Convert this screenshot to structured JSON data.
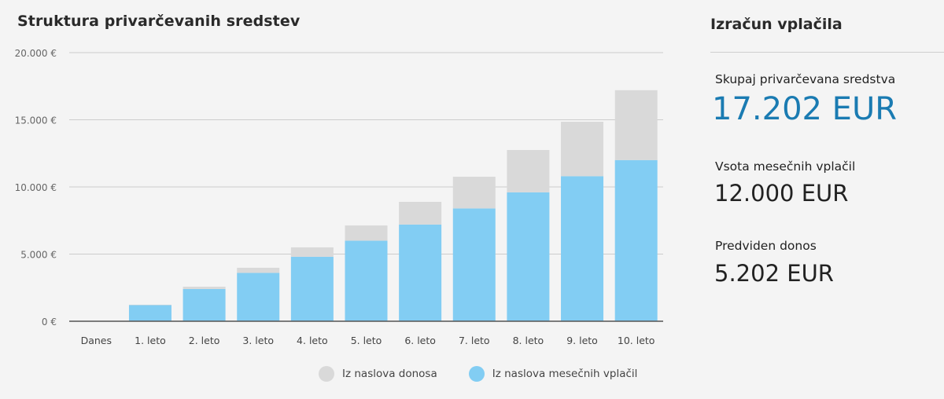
{
  "chart_data": {
    "type": "bar",
    "stacked": true,
    "title": "Struktura privarčevanih sredstev",
    "xlabel": "",
    "ylabel": "",
    "ylim": [
      0,
      20000
    ],
    "yticks": [
      0,
      5000,
      10000,
      15000,
      20000
    ],
    "ytick_labels": [
      "0 €",
      "5.000 €",
      "10.000 €",
      "15.000 €",
      "20.000 €"
    ],
    "grid": true,
    "legend_position": "bottom",
    "categories": [
      "Danes",
      "1. leto",
      "2. leto",
      "3. leto",
      "4. leto",
      "5. leto",
      "6. leto",
      "7. leto",
      "8. leto",
      "9. leto",
      "10. leto"
    ],
    "series": [
      {
        "name": "Iz naslova mesečnih vplačil",
        "color": "#82cdf3",
        "values": [
          0,
          1200,
          2400,
          3600,
          4800,
          6000,
          7200,
          8400,
          9600,
          10800,
          12000
        ]
      },
      {
        "name": "Iz naslova donosa",
        "color": "#d9d9d9",
        "values": [
          0,
          30,
          170,
          380,
          700,
          1130,
          1690,
          2360,
          3150,
          4050,
          5202
        ]
      }
    ]
  },
  "legend": {
    "donos": "Iz naslova donosa",
    "vplacila": "Iz naslova mesečnih vplačil"
  },
  "side": {
    "title": "Izračun vplačila",
    "total_label": "Skupaj privarčevana sredstva",
    "total_value": "17.202 EUR",
    "payments_label": "Vsota mesečnih vplačil",
    "payments_value": "12.000 EUR",
    "return_label": "Predviden donos",
    "return_value": "5.202 EUR"
  }
}
